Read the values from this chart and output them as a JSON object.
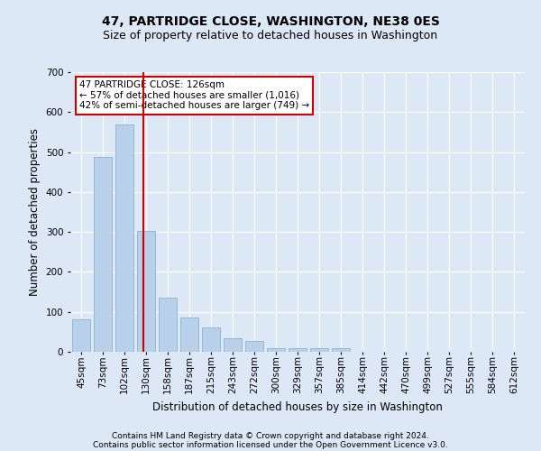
{
  "title": "47, PARTRIDGE CLOSE, WASHINGTON, NE38 0ES",
  "subtitle": "Size of property relative to detached houses in Washington",
  "xlabel": "Distribution of detached houses by size in Washington",
  "ylabel": "Number of detached properties",
  "footer_line1": "Contains HM Land Registry data © Crown copyright and database right 2024.",
  "footer_line2": "Contains public sector information licensed under the Open Government Licence v3.0.",
  "annotation_title": "47 PARTRIDGE CLOSE: 126sqm",
  "annotation_line1": "← 57% of detached houses are smaller (1,016)",
  "annotation_line2": "42% of semi-detached houses are larger (749) →",
  "property_sqm": 126,
  "bar_labels": [
    "45sqm",
    "73sqm",
    "102sqm",
    "130sqm",
    "158sqm",
    "187sqm",
    "215sqm",
    "243sqm",
    "272sqm",
    "300sqm",
    "329sqm",
    "357sqm",
    "385sqm",
    "414sqm",
    "442sqm",
    "470sqm",
    "499sqm",
    "527sqm",
    "555sqm",
    "584sqm",
    "612sqm"
  ],
  "bar_values": [
    82,
    487,
    568,
    303,
    136,
    85,
    62,
    33,
    28,
    10,
    10,
    10,
    10,
    0,
    0,
    0,
    0,
    0,
    0,
    0,
    0
  ],
  "bar_color": "#b8d0e8",
  "bar_edge_color": "#7aaac8",
  "vline_color": "#cc0000",
  "bg_color": "#dce8f5",
  "plot_bg_color": "#dce8f5",
  "grid_color": "#ffffff",
  "ylim": [
    0,
    700
  ],
  "yticks": [
    0,
    100,
    200,
    300,
    400,
    500,
    600,
    700
  ],
  "annotation_box_color": "#ffffff",
  "annotation_box_edge": "#cc0000",
  "title_fontsize": 10,
  "subtitle_fontsize": 9,
  "axis_label_fontsize": 8.5,
  "tick_fontsize": 7.5,
  "annotation_fontsize": 7.5,
  "footer_fontsize": 6.5
}
